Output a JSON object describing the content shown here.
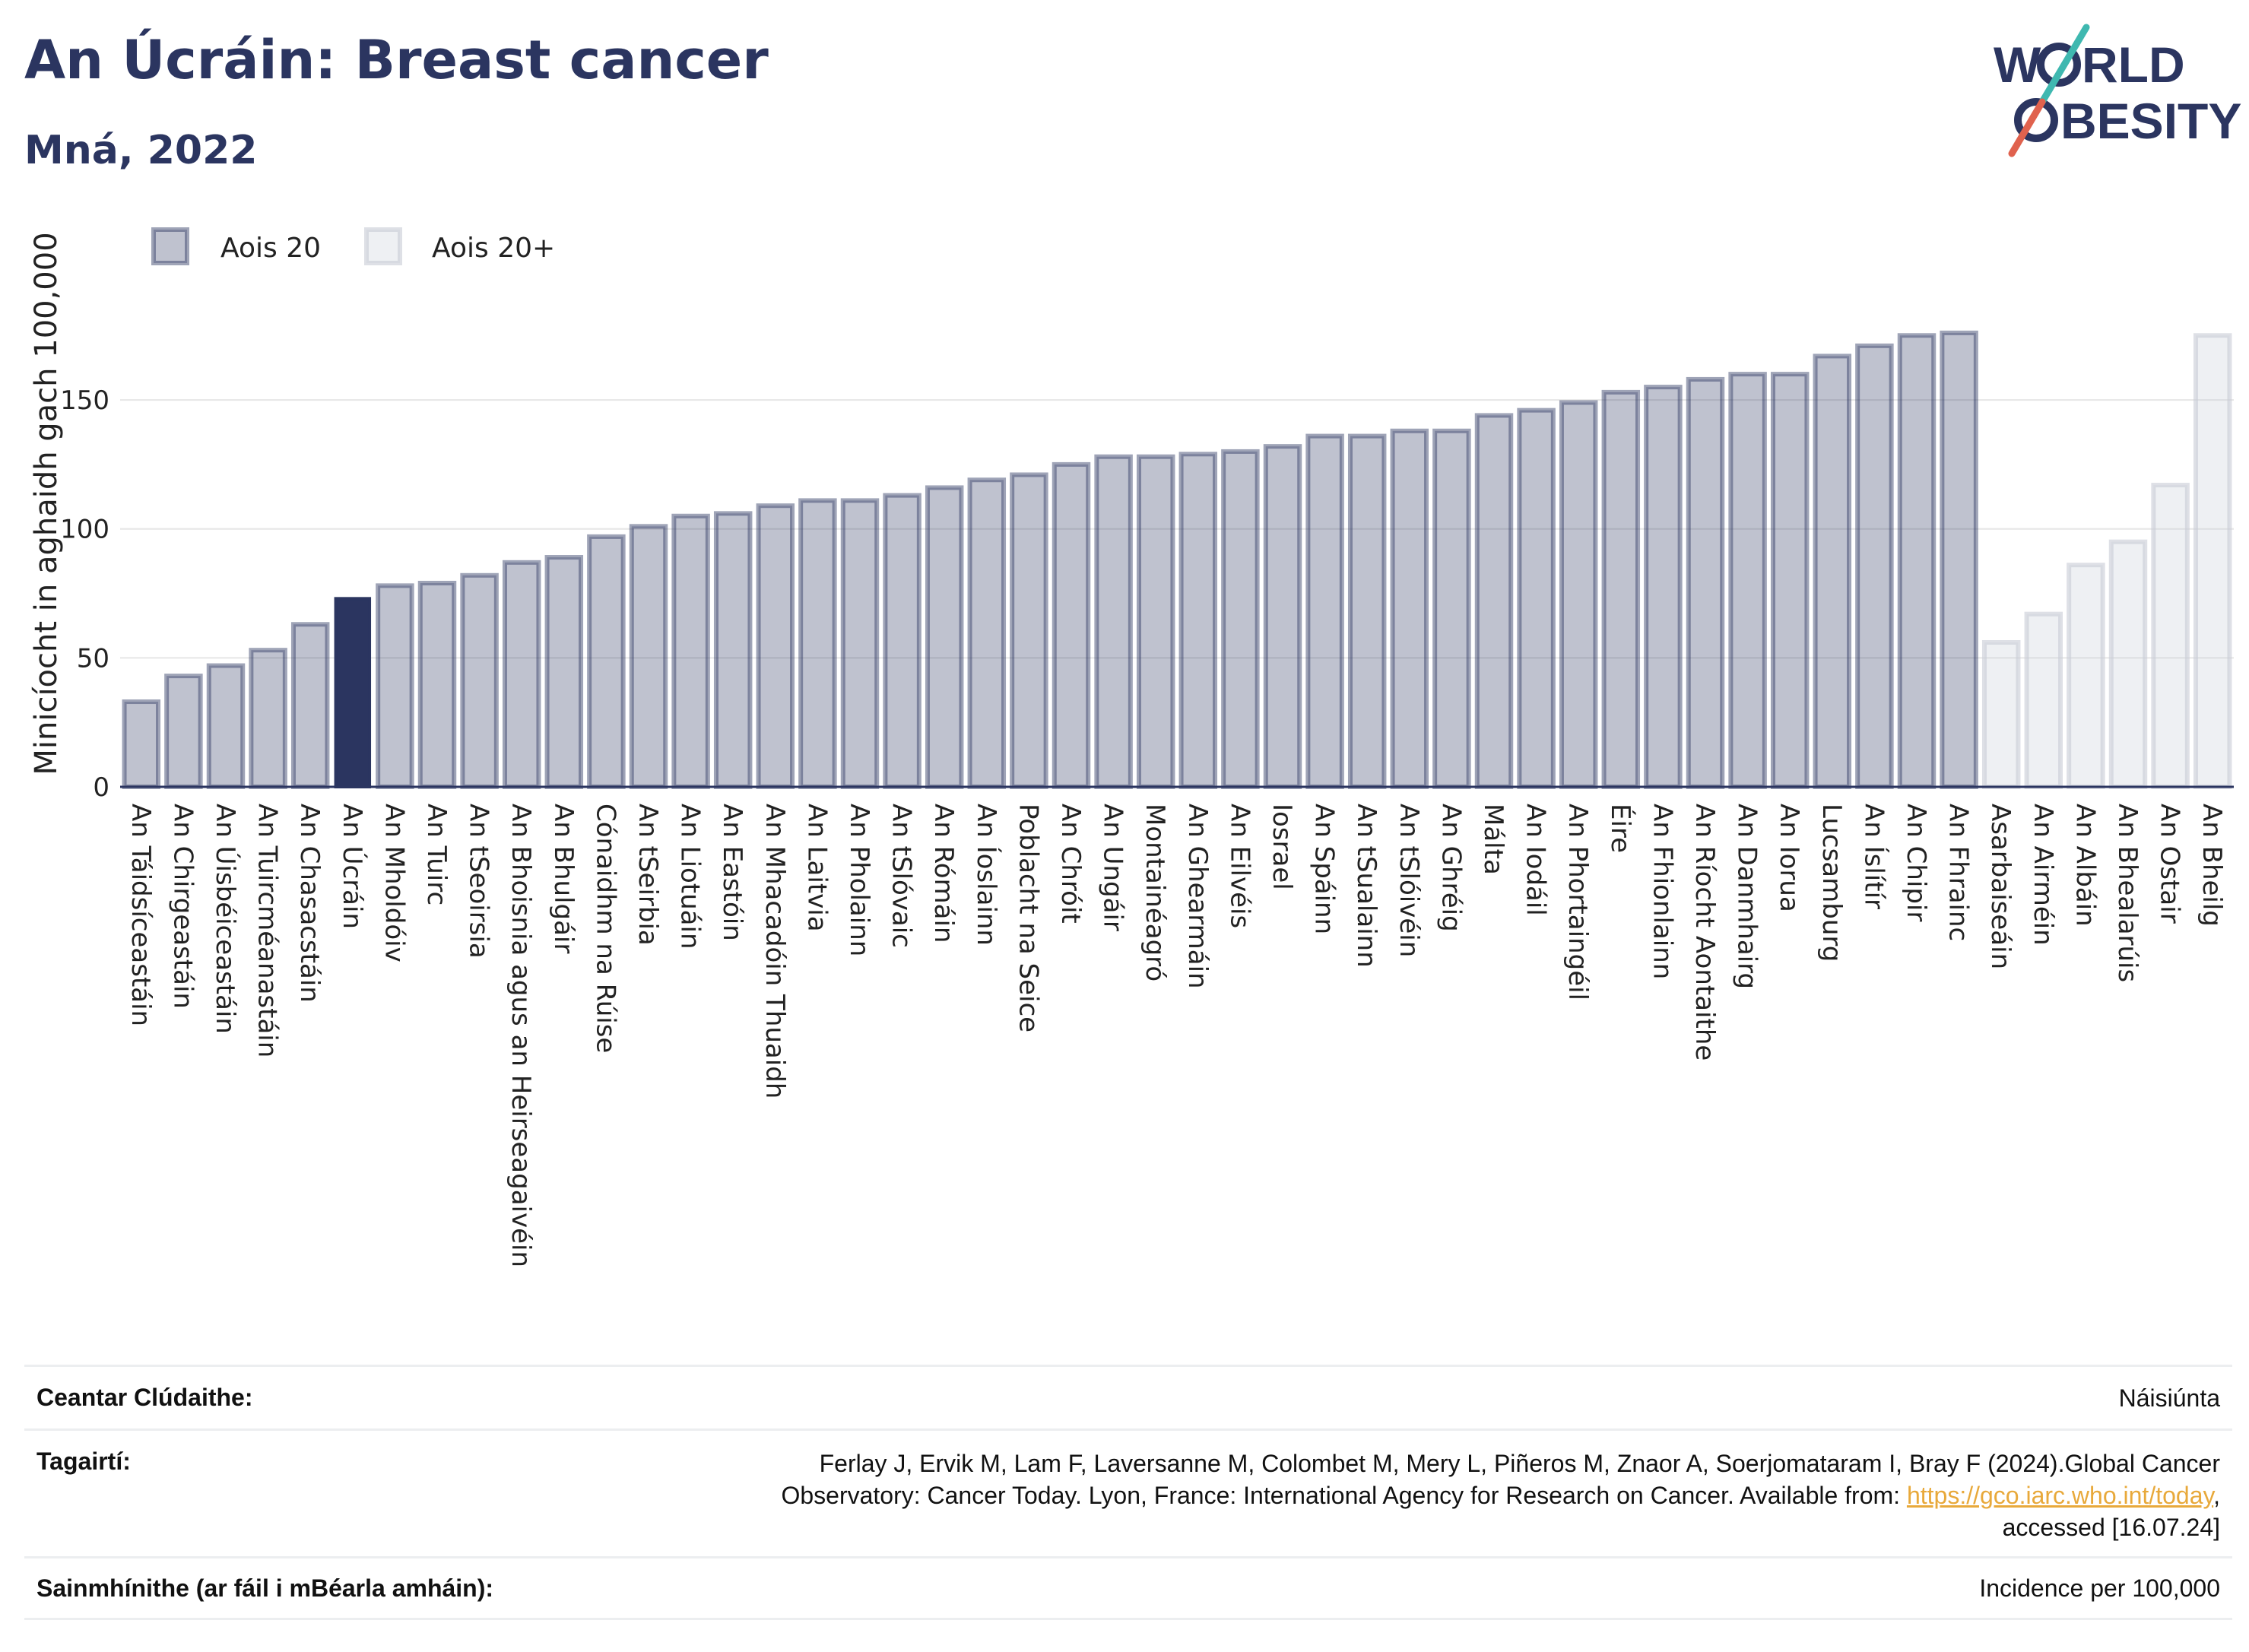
{
  "header": {
    "title": "An Úcráin: Breast cancer",
    "subtitle": "Mná, 2022"
  },
  "logo": {
    "line1": "W",
    "line1b": "RLD",
    "line2": "BESITY",
    "slash_color_top": "#3fb8b0",
    "slash_color_bottom": "#e0624e"
  },
  "colors": {
    "bar_main": "#2b3560",
    "bar_main_fill_opacity": 0.3,
    "bar_highlight": "#2b3560",
    "bar_light": "#c8ccd6",
    "gridline": "#e6e6e6",
    "axis": "#2b3560"
  },
  "chart_data": {
    "type": "bar",
    "ylabel": "Minicíocht in aghaidh gach 100,000",
    "ylim": [
      0,
      196
    ],
    "yticks": [
      0,
      50,
      100,
      150
    ],
    "grid": true,
    "legend_position": "top-left",
    "highlight": "An Úcráin",
    "series": [
      {
        "name": "Aois 20",
        "style": "main"
      },
      {
        "name": "Aois 20+",
        "style": "light"
      }
    ],
    "categories": [
      "An Táidsíceastáin",
      "An Chirgeastáin",
      "An Úisbéiceastáin",
      "An Tuircméanastáin",
      "An Chasacstáin",
      "An Úcráin",
      "An Mholdóiv",
      "An Tuirc",
      "An tSeoirsia",
      "An Bhoisnia agus an Heirseagaivéin",
      "An Bhulgáir",
      "Cónaidhm na Rúise",
      "An tSeirbia",
      "An Liotuáin",
      "An Eastóin",
      "An Mhacadóin Thuaidh",
      "An Laitvia",
      "An Pholainn",
      "An tSlóvaic",
      "An Rómáin",
      "An Íoslainn",
      "Poblacht na Seice",
      "An Chróit",
      "An Ungáir",
      "Montainéagró",
      "An Ghearmáin",
      "An Eilvéis",
      "Iosrael",
      "An Spáinn",
      "An tSualainn",
      "An tSlóivéin",
      "An Ghréig",
      "Málta",
      "An Iodáil",
      "An Phortaingéil",
      "Éire",
      "An Fhionlainn",
      "An Ríocht Aontaithe",
      "An Danmhairg",
      "An Iorua",
      "Lucsamburg",
      "An Íslítír",
      "An Chipir",
      "An Fhrainc",
      "Asarbaiseáin",
      "An Airméin",
      "An Albáin",
      "An Bhealarúis",
      "An Ostair",
      "An Bheilg"
    ],
    "values": [
      33,
      43,
      47,
      53,
      63,
      73,
      78,
      79,
      82,
      87,
      89,
      97,
      101,
      105,
      106,
      109,
      111,
      111,
      113,
      116,
      119,
      121,
      125,
      128,
      128,
      129,
      130,
      132,
      136,
      136,
      138,
      138,
      144,
      146,
      149,
      153,
      155,
      158,
      160,
      160,
      167,
      171,
      175,
      176,
      56,
      67,
      86,
      95,
      117,
      175
    ],
    "groups": [
      "main",
      "main",
      "main",
      "main",
      "main",
      "main",
      "main",
      "main",
      "main",
      "main",
      "main",
      "main",
      "main",
      "main",
      "main",
      "main",
      "main",
      "main",
      "main",
      "main",
      "main",
      "main",
      "main",
      "main",
      "main",
      "main",
      "main",
      "main",
      "main",
      "main",
      "main",
      "main",
      "main",
      "main",
      "main",
      "main",
      "main",
      "main",
      "main",
      "main",
      "main",
      "main",
      "main",
      "main",
      "light",
      "light",
      "light",
      "light",
      "light",
      "light"
    ]
  },
  "info": {
    "coverage_label": "Ceantar Clúdaithe:",
    "coverage_value": "Náisiúnta",
    "references_label": "Tagairtí:",
    "references_line1": "Ferlay J, Ervik M, Lam F, Laversanne M, Colombet M, Mery L, Piñeros M, Znaor A, Soerjomataram I, Bray F (2024).Global Cancer",
    "references_line2_pre": "Observatory: Cancer Today. Lyon, France: International Agency for Research on Cancer. Available from: ",
    "references_link": "https://gco.iarc.who.int/today",
    "references_line2_post": ",",
    "references_line3": "accessed [16.07.24]",
    "definitions_label": "Sainmhínithe (ar fáil i mBéarla amháin):",
    "definitions_value": "Incidence per 100,000"
  }
}
